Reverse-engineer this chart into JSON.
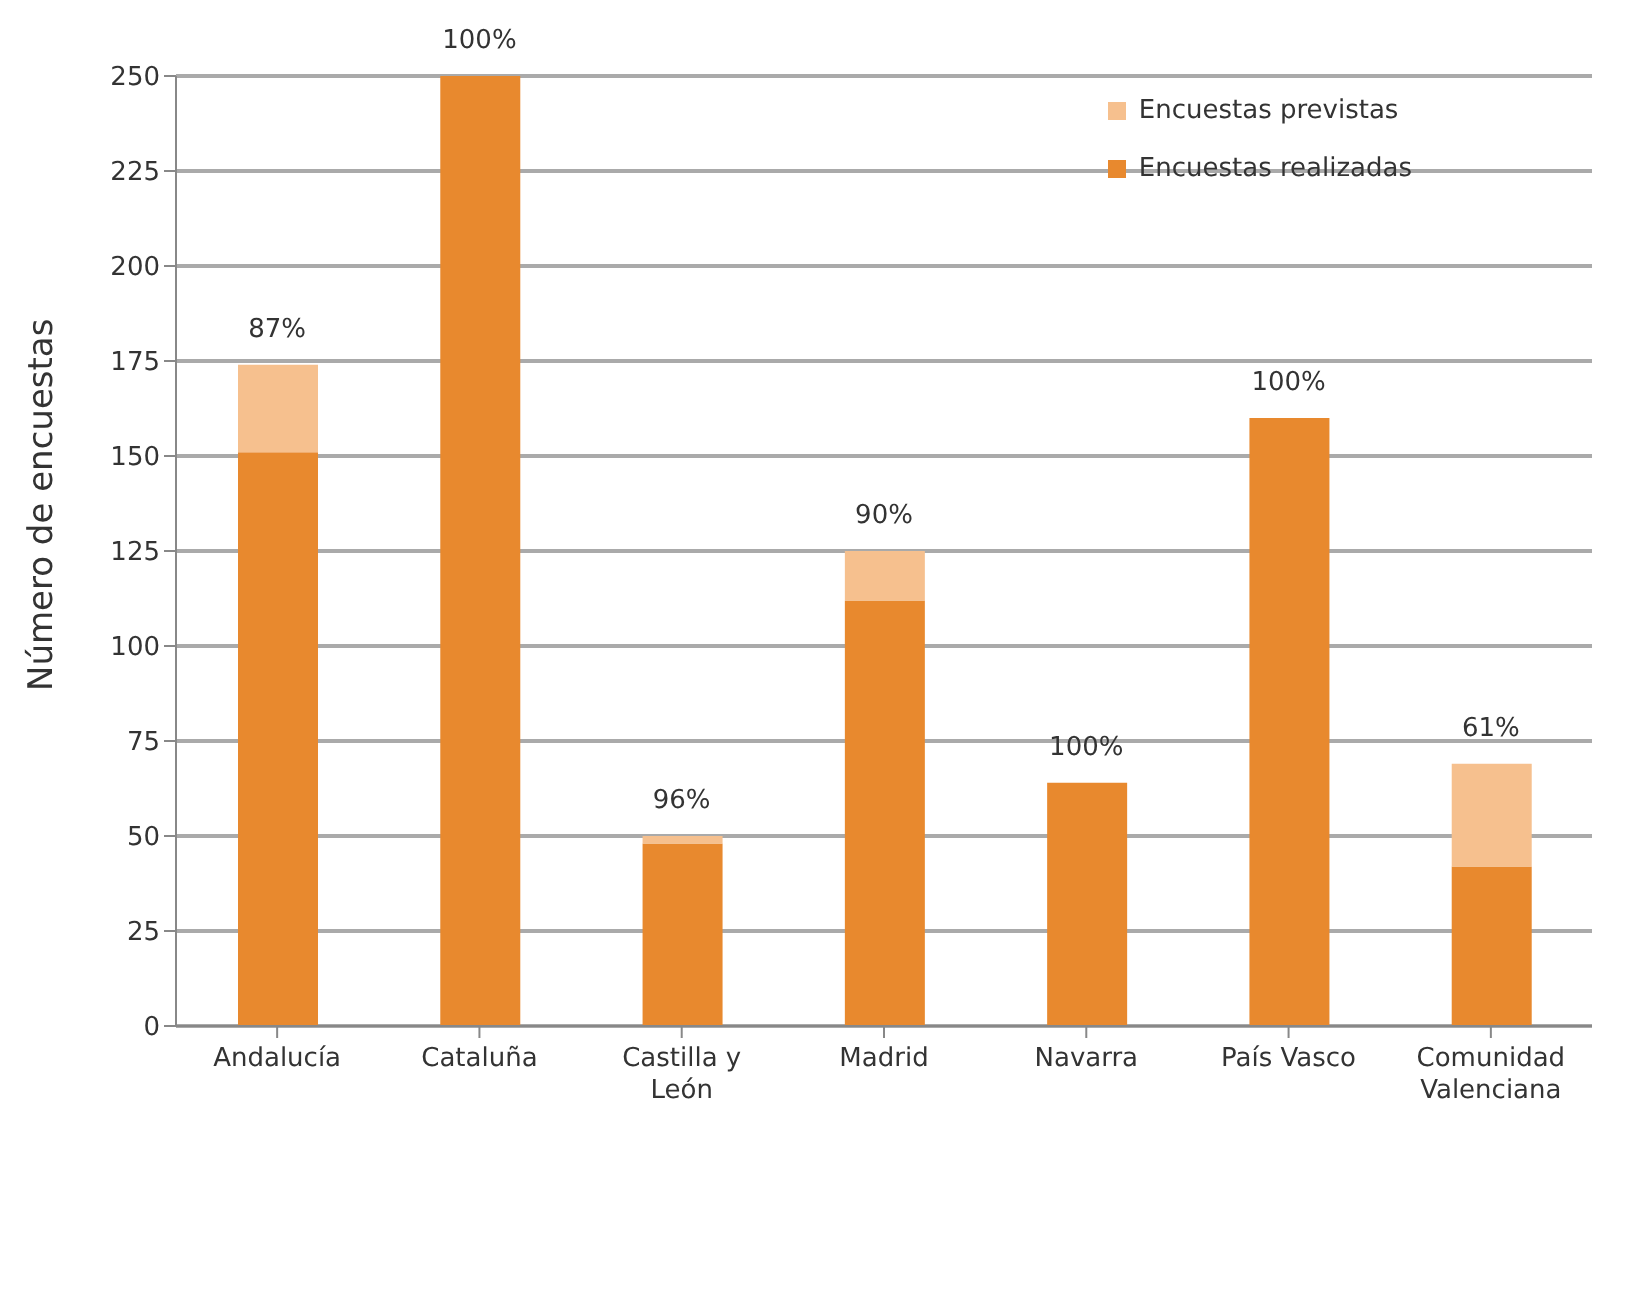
{
  "chart_data": {
    "type": "bar",
    "stacked": true,
    "ylabel": "Número de encuestas",
    "categories": [
      "Andalucía",
      "Cataluña",
      "Castilla y León",
      "Madrid",
      "Navarra",
      "País Vasco",
      "Comunidad Valenciana"
    ],
    "series": [
      {
        "name": "Encuestas realizadas",
        "color": "#e8892e",
        "values": [
          151,
          250,
          48,
          112,
          64,
          160,
          42
        ]
      },
      {
        "name": "Encuestas previstas",
        "color": "#f6c08e",
        "values": [
          23,
          0,
          2,
          13,
          0,
          0,
          27
        ]
      }
    ],
    "annotations": [
      {
        "text": "87%",
        "x": "Andalucía",
        "y": 174
      },
      {
        "text": "100%",
        "x": "Cataluña",
        "y": 250
      },
      {
        "text": "96%",
        "x": "Castilla y León",
        "y": 50
      },
      {
        "text": "90%",
        "x": "Madrid",
        "y": 125
      },
      {
        "text": "100%",
        "x": "Navarra",
        "y": 64
      },
      {
        "text": "100%",
        "x": "País Vasco",
        "y": 160
      },
      {
        "text": "61%",
        "x": "Comunidad Valenciana",
        "y": 69
      }
    ],
    "ylim": [
      0,
      250
    ],
    "yticks": [
      0,
      25,
      50,
      75,
      100,
      125,
      150,
      175,
      200,
      225,
      250
    ],
    "grid": "y",
    "legend": "top right"
  }
}
